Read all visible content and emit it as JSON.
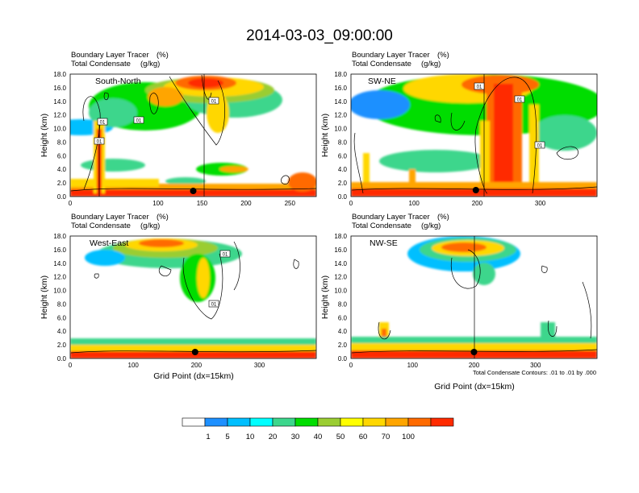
{
  "figure": {
    "title": "2014-03-03_09:00:00",
    "contour_note": "Total Condensate Contours: .01 to .01 by .000"
  },
  "colorbar": {
    "labels": [
      "1",
      "5",
      "10",
      "20",
      "30",
      "40",
      "50",
      "60",
      "70",
      "100"
    ],
    "colors": [
      "#ffffff",
      "#1e90ff",
      "#00bfff",
      "#00ffff",
      "#3cd68c",
      "#00dd00",
      "#9acd32",
      "#ffff00",
      "#ffd700",
      "#ffa500",
      "#ff6a00",
      "#ff2a00"
    ]
  },
  "chart_data": [
    {
      "type": "contour",
      "name": "South-North",
      "region_label": "South-North",
      "title_line1": "Boundary Layer Tracer",
      "title_unit1": "(%)",
      "title_line2": "Total Condensate",
      "title_unit2": "(g/kg)",
      "ylabel": "Height (km)",
      "xlabel": "",
      "ylim": [
        0,
        18
      ],
      "xlim": [
        0,
        280
      ],
      "yticks": [
        "0.0",
        "2.0",
        "4.0",
        "6.0",
        "8.0",
        "10.0",
        "12.0",
        "14.0",
        "16.0",
        "18.0"
      ],
      "xticks": [
        "0",
        "100",
        "150",
        "200",
        "250"
      ],
      "xtick_values": [
        0,
        100,
        150,
        200,
        250
      ],
      "contour_tags": [
        "01",
        "01",
        "01",
        "01"
      ],
      "surface_marker_x": 140
    },
    {
      "type": "contour",
      "name": "SW-NE",
      "region_label": "SW-NE",
      "title_line1": "Boundary Layer Tracer",
      "title_unit1": "(%)",
      "title_line2": "Total Condensate",
      "title_unit2": "(g/kg)",
      "ylabel": "Height (km)",
      "xlabel": "",
      "ylim": [
        0,
        18
      ],
      "xlim": [
        0,
        390
      ],
      "yticks": [
        "0.0",
        "2.0",
        "4.0",
        "6.0",
        "8.0",
        "10.0",
        "12.0",
        "14.0",
        "16.0",
        "18.0"
      ],
      "xticks": [
        "0",
        "100",
        "200",
        "300"
      ],
      "xtick_values": [
        0,
        100,
        200,
        300
      ],
      "contour_tags": [
        "01",
        "01",
        "01"
      ],
      "surface_marker_x": 198
    },
    {
      "type": "contour",
      "name": "West-East",
      "region_label": "West-East",
      "title_line1": "Boundary Layer Tracer",
      "title_unit1": "(%)",
      "title_line2": "Total Condensate",
      "title_unit2": "(g/kg)",
      "ylabel": "Height (km)",
      "xlabel": "Grid Point (dx=15km)",
      "ylim": [
        0,
        18
      ],
      "xlim": [
        0,
        390
      ],
      "yticks": [
        "0.0",
        "2.0",
        "4.0",
        "6.0",
        "8.0",
        "10.0",
        "12.0",
        "14.0",
        "16.0",
        "18.0"
      ],
      "xticks": [
        "0",
        "100",
        "200",
        "300"
      ],
      "xtick_values": [
        0,
        100,
        200,
        300
      ],
      "contour_tags": [
        "01",
        "01"
      ],
      "surface_marker_x": 198
    },
    {
      "type": "contour",
      "name": "NW-SE",
      "region_label": "NW-SE",
      "title_line1": "Boundary Layer Tracer",
      "title_unit1": "(%)",
      "title_line2": "Total Condensate",
      "title_unit2": "(g/kg)",
      "ylabel": "Height (km)",
      "xlabel": "Grid Point (dx=15km)",
      "ylim": [
        0,
        18
      ],
      "xlim": [
        0,
        400
      ],
      "yticks": [
        "0.0",
        "2.0",
        "4.0",
        "6.0",
        "8.0",
        "10.0",
        "12.0",
        "14.0",
        "16.0",
        "18.0"
      ],
      "xticks": [
        "0",
        "100",
        "200",
        "300"
      ],
      "xtick_values": [
        0,
        100,
        200,
        300
      ],
      "contour_tags": [],
      "surface_marker_x": 200
    }
  ]
}
